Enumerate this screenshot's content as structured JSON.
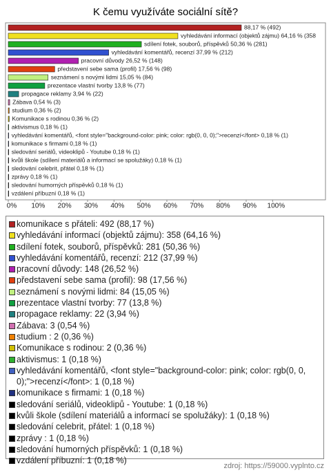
{
  "chart_data": {
    "type": "bar",
    "orientation": "horizontal",
    "title": "K čemu využíváte sociální sítě?",
    "categories": [
      "komunikace s přáteli",
      "vyhledávání informací (objektů zájmu)",
      "sdílení fotek, souborů, příspěvků",
      "vyhledávání komentářů, recenzí",
      "pracovní důvody",
      "představení sebe sama (profil)",
      "seznámení s novými lidmi",
      "prezentace vlastní tvorby",
      "propagace reklamy",
      "Zábava",
      "studium",
      "Komunikace s rodinou",
      "aktivismus",
      "vyhledávání komentářů, <font style=\"background-color: pink; color: rgb(0, 0, 0);\">recenzí</font>",
      "komunikace s firmami",
      "sledování seriálů, videoklipů - Youtube",
      "kvůli škole (sdílení materiálů a informací se spolužáky)",
      "sledování celebrit, přátel",
      "zprávy",
      "sledování humorných příspěvků",
      "vzdálení příbuzní"
    ],
    "values": [
      88.17,
      64.16,
      50.36,
      37.99,
      26.52,
      17.56,
      15.05,
      13.8,
      3.94,
      0.54,
      0.36,
      0.36,
      0.18,
      0.18,
      0.18,
      0.18,
      0.18,
      0.18,
      0.18,
      0.18,
      0.18
    ],
    "value_labels": [
      "88,17 % (492)",
      "vyhledávání informací (objektů zájmu) 64,16 % (358",
      "sdílení fotek, souborů, příspěvků 50,36 % (281)",
      "vyhledávání komentářů, recenzí 37,99 % (212)",
      "pracovní důvody 26,52 % (148)",
      "představení sebe sama (profil) 17,56 % (98)",
      "seznámení s novými lidmi 15,05 % (84)",
      "prezentace vlastní tvorby 13,8 % (77)",
      "propagace reklamy 3,94 % (22)",
      "Zábava 0,54 % (3)",
      "studium  0,36 % (2)",
      "Komunikace s rodinou 0,36 % (2)",
      "aktivismus 0,18 % (1)",
      "vyhledávání komentářů, <font style=\"background-color: pink; color: rgb(0, 0, 0);\">recenzí</font> 0,18 % (1)",
      "komunikace s firmami 0,18 % (1)",
      "sledování seriálů, videoklipů - Youtube 0,18 % (1)",
      "kvůli škole (sdílení materiálů a informací se spolužáky) 0,18 % (1)",
      "sledování celebrit, přátel 0,18 % (1)",
      "zprávy  0,18 % (1)",
      "sledování humorných příspěvků 0,18 % (1)",
      "vzdálení příbuzní 0,18 % (1)"
    ],
    "legend_labels": [
      "komunikace s přáteli: 492 (88,17 %)",
      "vyhledávání informací (objektů zájmu): 358 (64,16 %)",
      "sdílení fotek, souborů, příspěvků: 281 (50,36 %)",
      "vyhledávání komentářů, recenzí: 212 (37,99 %)",
      "pracovní důvody: 148 (26,52 %)",
      "představení sebe sama (profil): 98 (17,56 %)",
      "seznámení s novými lidmi: 84 (15,05 %)",
      "prezentace vlastní tvorby: 77 (13,8 %)",
      "propagace reklamy: 22 (3,94 %)",
      "Zábava: 3 (0,54 %)",
      "studium : 2 (0,36 %)",
      "Komunikace s rodinou: 2 (0,36 %)",
      "aktivismus: 1 (0,18 %)",
      "vyhledávání komentářů, <font style=\"background-color: pink; color: rgb(0, 0, 0);\">recenzí</font>: 1 (0,18 %)",
      "komunikace s firmami: 1 (0,18 %)",
      "sledování seriálů, videoklipů - Youtube: 1 (0,18 %)",
      "kvůli škole (sdílení materiálů a informací se spolužáky): 1 (0,18 %)",
      "sledování celebrit, přátel: 1 (0,18 %)",
      "zprávy : 1 (0,18 %)",
      "sledování humorných příspěvků: 1 (0,18 %)",
      "vzdálení příbuzní: 1 (0,18 %)"
    ],
    "colors": [
      "#b22222",
      "#f0e020",
      "#20b020",
      "#3050d0",
      "#b020b0",
      "#e04010",
      "#c0f080",
      "#10a040",
      "#208080",
      "#d070b0",
      "#f08000",
      "#d0c000",
      "#30b030",
      "#4060c0",
      "#203080",
      "#000000",
      "#000000",
      "#000000",
      "#000000",
      "#000000",
      "#000000"
    ],
    "xlim": [
      0,
      120
    ],
    "xticks": [
      {
        "value": 0,
        "label": "0%"
      },
      {
        "value": 10,
        "label": "10%"
      },
      {
        "value": 20,
        "label": "20%"
      },
      {
        "value": 30,
        "label": "30%"
      },
      {
        "value": 40,
        "label": "40%"
      },
      {
        "value": 50,
        "label": "50%"
      },
      {
        "value": 60,
        "label": "60%"
      },
      {
        "value": 70,
        "label": "70%"
      },
      {
        "value": 80,
        "label": "80%"
      },
      {
        "value": 90,
        "label": "90%"
      },
      {
        "value": 100,
        "label": "100%"
      }
    ],
    "source": "zdroj: https://59000.vyplnto.cz"
  }
}
